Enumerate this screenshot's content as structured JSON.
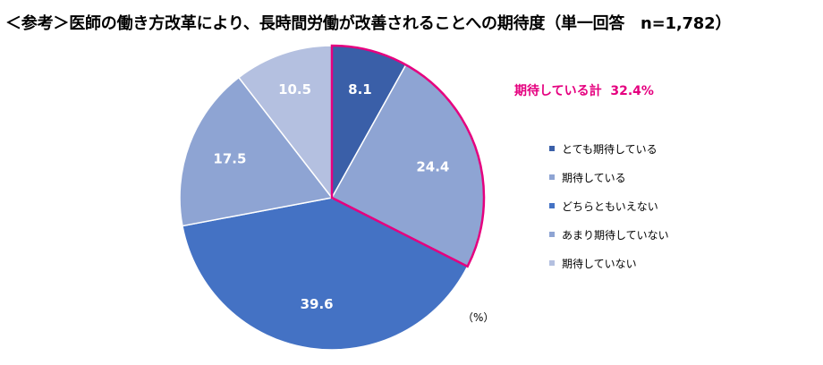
{
  "title": "＜参考＞医師の働き方改革により、長時間労働が改善されることへの期待度（単一回答　n=1,782）",
  "unit_label": "（%）",
  "expect_total": {
    "label": "期待している計",
    "value": "32.4%",
    "color": "#e5007f"
  },
  "chart_data": {
    "type": "pie",
    "title": "医師の働き方改革により、長時間労働が改善されることへの期待度",
    "n": "1,782",
    "unit": "%",
    "start": "12 o'clock, clockwise",
    "slices": [
      {
        "label": "とても期待している",
        "value": 8.1,
        "display": "8.1",
        "color": "#3a5fa8"
      },
      {
        "label": "期待している",
        "value": 24.4,
        "display": "24.4",
        "color": "#8ea4d3"
      },
      {
        "label": "どちらともいえない",
        "value": 39.6,
        "display": "39.6",
        "color": "#4472c4"
      },
      {
        "label": "あまり期待していない",
        "value": 17.5,
        "display": "17.5",
        "color": "#8ea4d3"
      },
      {
        "label": "期待していない",
        "value": 10.5,
        "display": "10.5",
        "color": "#b4c0e0"
      }
    ],
    "highlight": {
      "slices": [
        0,
        1
      ],
      "label": "期待している計",
      "value": 32.4,
      "color": "#e5007f"
    }
  }
}
